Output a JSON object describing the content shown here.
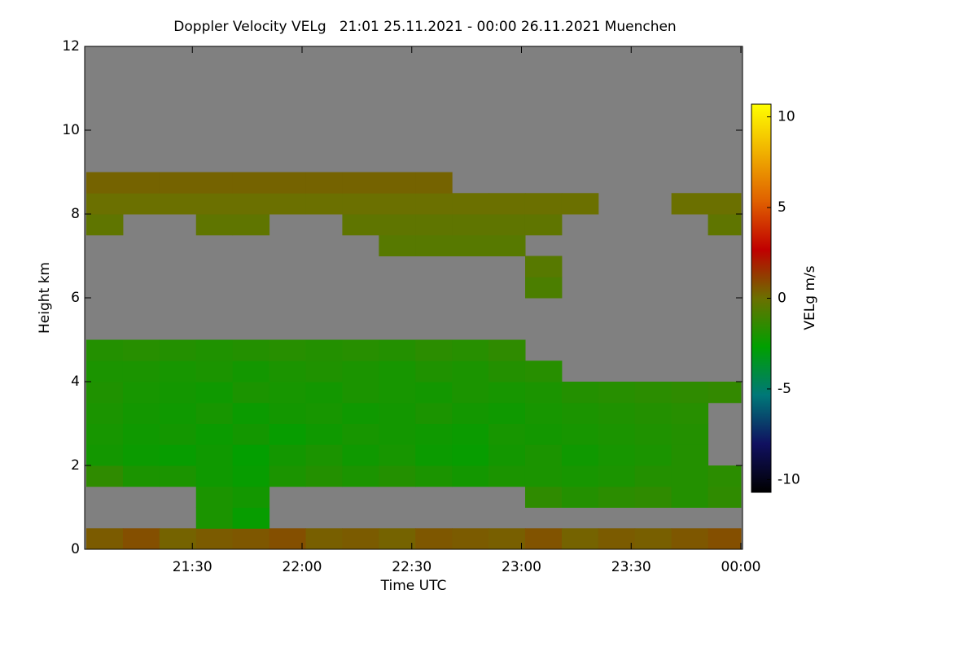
{
  "chart_data": {
    "type": "heatmap",
    "title": "Doppler Velocity VELg   21:01 25.11.2021 - 00:00 26.11.2021 Muenchen",
    "x_label": "Time UTC",
    "y_label": "Height km",
    "colorbar_label": "VELg m/s",
    "background": "#808080",
    "x": [
      "21:01",
      "21:11",
      "21:21",
      "21:31",
      "21:41",
      "21:51",
      "22:01",
      "22:11",
      "22:21",
      "22:31",
      "22:41",
      "22:51",
      "23:01",
      "23:11",
      "23:21",
      "23:31",
      "23:41",
      "23:51"
    ],
    "y": [
      0,
      0.5,
      1,
      1.5,
      2,
      2.5,
      3,
      3.5,
      4,
      4.5,
      5,
      5.5,
      6,
      6.5,
      7,
      7.5,
      8,
      8.5,
      9,
      9.5,
      10,
      10.5,
      11,
      11.5
    ],
    "xlim": [
      "21:01",
      "00:00"
    ],
    "xticks": [
      "21:30",
      "22:00",
      "22:30",
      "23:00",
      "23:30",
      "00:00"
    ],
    "ylim": [
      0,
      12
    ],
    "yticks": [
      0,
      2,
      4,
      6,
      8,
      10,
      12
    ],
    "zlim": [
      -10.7,
      10.7
    ],
    "zticks": [
      -10,
      -5,
      0,
      5,
      10
    ],
    "colormap": [
      "#000000",
      "#101060",
      "#007878",
      "#00a000",
      "#6b7000",
      "#c00000",
      "#e06000",
      "#f0b000",
      "#ffff00"
    ],
    "values": [
      [
        0.5,
        0.8,
        0.3,
        0.5,
        0.6,
        0.8,
        0.4,
        0.5,
        0.3,
        0.6,
        0.5,
        0.4,
        0.7,
        0.3,
        0.5,
        0.4,
        0.6,
        0.8
      ],
      [
        null,
        null,
        null,
        -2,
        -2.5,
        null,
        null,
        null,
        null,
        null,
        null,
        null,
        null,
        null,
        null,
        null,
        null,
        null
      ],
      [
        null,
        null,
        null,
        -2,
        -2.2,
        null,
        null,
        null,
        null,
        null,
        null,
        null,
        -1.5,
        -1.8,
        -1.6,
        -1.5,
        -1.8,
        -1.5
      ],
      [
        -1.5,
        -2,
        -2,
        -2.3,
        -2.5,
        -2,
        -1.8,
        -2,
        -1.8,
        -2,
        -2.2,
        -2,
        -2,
        -2.1,
        -2,
        -1.8,
        -1.8,
        -1.6
      ],
      [
        -2.2,
        -2.4,
        -2.5,
        -2.3,
        -2.6,
        -2.2,
        -2,
        -2.3,
        -2.1,
        -2.4,
        -2.5,
        -2.2,
        -2,
        -2.3,
        -2.1,
        -2,
        -1.8,
        null
      ],
      [
        -2.1,
        -2.3,
        -2.2,
        -2.4,
        -2.2,
        -2.5,
        -2.3,
        -2.1,
        -2.2,
        -2.3,
        -2.4,
        -2.1,
        -2.2,
        -2.1,
        -2,
        -1.9,
        -1.8,
        null
      ],
      [
        -2,
        -2.2,
        -2.3,
        -2.1,
        -2.4,
        -2.2,
        -2.1,
        -2.3,
        -2.2,
        -2,
        -2.2,
        -2.3,
        -2.1,
        -2,
        -1.9,
        -1.8,
        -1.7,
        null
      ],
      [
        -1.9,
        -2.1,
        -2.2,
        -2.3,
        -2,
        -2.1,
        -2.2,
        -2,
        -2.1,
        -2.2,
        -2,
        -2.1,
        -2,
        -1.8,
        -1.7,
        -1.6,
        -1.5,
        -1.4
      ],
      [
        -2,
        -2,
        -2.1,
        -2,
        -2.2,
        -2,
        -1.9,
        -2,
        -2.1,
        -1.9,
        -2,
        -1.8,
        -1.7,
        null,
        null,
        null,
        null,
        null
      ],
      [
        -1.8,
        -1.7,
        -1.8,
        -1.9,
        -1.8,
        -1.7,
        -1.8,
        -1.7,
        -1.8,
        -1.6,
        -1.7,
        -1.5,
        null,
        null,
        null,
        null,
        null,
        null
      ],
      [
        null,
        null,
        null,
        null,
        null,
        null,
        null,
        null,
        null,
        null,
        null,
        null,
        null,
        null,
        null,
        null,
        null,
        null
      ],
      [
        null,
        null,
        null,
        null,
        null,
        null,
        null,
        null,
        null,
        null,
        null,
        null,
        null,
        null,
        null,
        null,
        null,
        null
      ],
      [
        null,
        null,
        null,
        null,
        null,
        null,
        null,
        null,
        null,
        null,
        null,
        null,
        -0.8,
        null,
        null,
        null,
        null,
        null
      ],
      [
        null,
        null,
        null,
        null,
        null,
        null,
        null,
        null,
        null,
        null,
        null,
        null,
        -0.5,
        null,
        null,
        null,
        null,
        null
      ],
      [
        null,
        null,
        null,
        null,
        null,
        null,
        null,
        null,
        -0.5,
        -0.5,
        -0.5,
        -0.5,
        null,
        null,
        null,
        null,
        null,
        null
      ],
      [
        -0.3,
        null,
        null,
        -0.3,
        -0.3,
        null,
        null,
        -0.3,
        -0.3,
        -0.3,
        -0.3,
        -0.3,
        -0.3,
        null,
        null,
        null,
        null,
        -0.3
      ],
      [
        0,
        0,
        0,
        0,
        0,
        0,
        0,
        0,
        0,
        0,
        0,
        0,
        0,
        0,
        null,
        null,
        0,
        0
      ],
      [
        0.3,
        0.3,
        0.3,
        0.3,
        0.3,
        0.3,
        0.3,
        0.3,
        0.3,
        0.3,
        null,
        null,
        null,
        null,
        null,
        null,
        null,
        null
      ],
      [
        null,
        null,
        null,
        null,
        null,
        null,
        null,
        null,
        null,
        null,
        null,
        null,
        null,
        null,
        null,
        null,
        null,
        null
      ],
      [
        null,
        null,
        null,
        null,
        null,
        null,
        null,
        null,
        null,
        null,
        null,
        null,
        null,
        null,
        null,
        null,
        null,
        null
      ],
      [
        null,
        null,
        null,
        null,
        null,
        null,
        null,
        null,
        null,
        null,
        null,
        null,
        null,
        null,
        null,
        null,
        null,
        null
      ],
      [
        null,
        null,
        null,
        null,
        null,
        null,
        null,
        null,
        null,
        null,
        null,
        null,
        null,
        null,
        null,
        null,
        null,
        null
      ],
      [
        null,
        null,
        null,
        null,
        null,
        null,
        null,
        null,
        null,
        null,
        null,
        null,
        null,
        null,
        null,
        null,
        null,
        null
      ],
      [
        null,
        null,
        null,
        null,
        null,
        null,
        null,
        null,
        null,
        null,
        null,
        null,
        null,
        null,
        null,
        null,
        null,
        null
      ]
    ]
  }
}
